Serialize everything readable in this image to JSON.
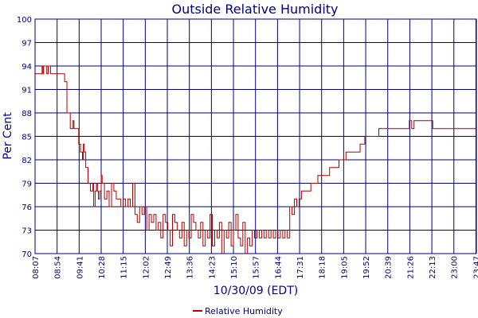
{
  "chart_data": {
    "type": "line",
    "title": "Outside Relative Humidity",
    "xlabel": "10/30/09 (EDT)",
    "ylabel": "Per Cent",
    "ylim": [
      70,
      100
    ],
    "yticks": [
      70,
      73,
      76,
      79,
      82,
      85,
      88,
      91,
      94,
      97,
      100
    ],
    "xlim": [
      "08:07",
      "23:48"
    ],
    "xticks": [
      "08:07",
      "08:54",
      "09:41",
      "10:28",
      "11:15",
      "12:02",
      "12:49",
      "13:36",
      "14:23",
      "15:10",
      "15:57",
      "16:44",
      "17:31",
      "18:18",
      "19:05",
      "19:52",
      "20:39",
      "21:26",
      "22:13",
      "23:00",
      "23:47"
    ],
    "grid": true,
    "legend_position": "bottom-center",
    "colors": {
      "series": "#b00000",
      "grid": "#000080",
      "text": "#000080"
    },
    "series": [
      {
        "name": "Relative Humidity",
        "x": [
          "08:07",
          "08:20",
          "08:22",
          "08:24",
          "08:25",
          "08:30",
          "08:32",
          "08:35",
          "08:38",
          "08:40",
          "08:48",
          "08:52",
          "09:10",
          "09:15",
          "09:22",
          "09:28",
          "09:30",
          "09:35",
          "09:40",
          "09:44",
          "09:48",
          "09:50",
          "09:52",
          "09:55",
          "10:00",
          "10:05",
          "10:10",
          "10:12",
          "10:15",
          "10:18",
          "10:20",
          "10:22",
          "10:25",
          "10:28",
          "10:30",
          "10:35",
          "10:40",
          "10:45",
          "10:50",
          "10:55",
          "11:00",
          "11:05",
          "11:10",
          "11:15",
          "11:20",
          "11:25",
          "11:30",
          "11:35",
          "11:40",
          "11:45",
          "11:50",
          "11:55",
          "12:00",
          "12:05",
          "12:10",
          "12:15",
          "12:20",
          "12:25",
          "12:30",
          "12:35",
          "12:40",
          "12:45",
          "12:50",
          "12:55",
          "13:00",
          "13:05",
          "13:10",
          "13:15",
          "13:20",
          "13:25",
          "13:30",
          "13:35",
          "13:40",
          "13:45",
          "13:50",
          "13:55",
          "14:00",
          "14:05",
          "14:10",
          "14:15",
          "14:20",
          "14:25",
          "14:30",
          "14:35",
          "14:40",
          "14:45",
          "14:50",
          "14:55",
          "15:00",
          "15:05",
          "15:10",
          "15:15",
          "15:20",
          "15:25",
          "15:30",
          "15:35",
          "15:40",
          "15:45",
          "15:50",
          "15:55",
          "16:00",
          "16:05",
          "16:10",
          "16:15",
          "16:20",
          "16:25",
          "16:30",
          "16:35",
          "16:40",
          "16:45",
          "16:50",
          "16:55",
          "17:00",
          "17:05",
          "17:10",
          "17:15",
          "17:20",
          "17:25",
          "17:30",
          "17:35",
          "17:45",
          "17:55",
          "18:10",
          "18:25",
          "18:35",
          "18:55",
          "19:10",
          "19:40",
          "19:50",
          "20:10",
          "20:20",
          "21:10",
          "21:20",
          "21:25",
          "21:30",
          "21:35",
          "21:40",
          "22:05",
          "22:13",
          "22:15",
          "22:30",
          "23:00",
          "23:48"
        ],
        "values": [
          93,
          93,
          94,
          93,
          94,
          94,
          93,
          94,
          94,
          93,
          93,
          93,
          92,
          88,
          86,
          87,
          86,
          86,
          84,
          83,
          82,
          84,
          83,
          81,
          79,
          78,
          79,
          76,
          78,
          79,
          78,
          77,
          78,
          80,
          79,
          77,
          78,
          76,
          79,
          78,
          77,
          77,
          76,
          77,
          76,
          77,
          76,
          79,
          75,
          74,
          76,
          75,
          76,
          73,
          75,
          74,
          75,
          73,
          74,
          72,
          75,
          74,
          73,
          71,
          75,
          74,
          73,
          72,
          74,
          71,
          73,
          72,
          75,
          74,
          73,
          72,
          74,
          71,
          73,
          72,
          75,
          71,
          73,
          72,
          74,
          70,
          73,
          72,
          74,
          71,
          73,
          75,
          72,
          71,
          74,
          70,
          72,
          71,
          73,
          72,
          73,
          72,
          73,
          72,
          73,
          72,
          73,
          72,
          73,
          72,
          73,
          72,
          73,
          72,
          76,
          75,
          77,
          76,
          77,
          78,
          78,
          79,
          80,
          80,
          81,
          82,
          83,
          84,
          85,
          85,
          86,
          86,
          86,
          87,
          86,
          87,
          87,
          87,
          87,
          86,
          86,
          86,
          86
        ]
      }
    ]
  }
}
